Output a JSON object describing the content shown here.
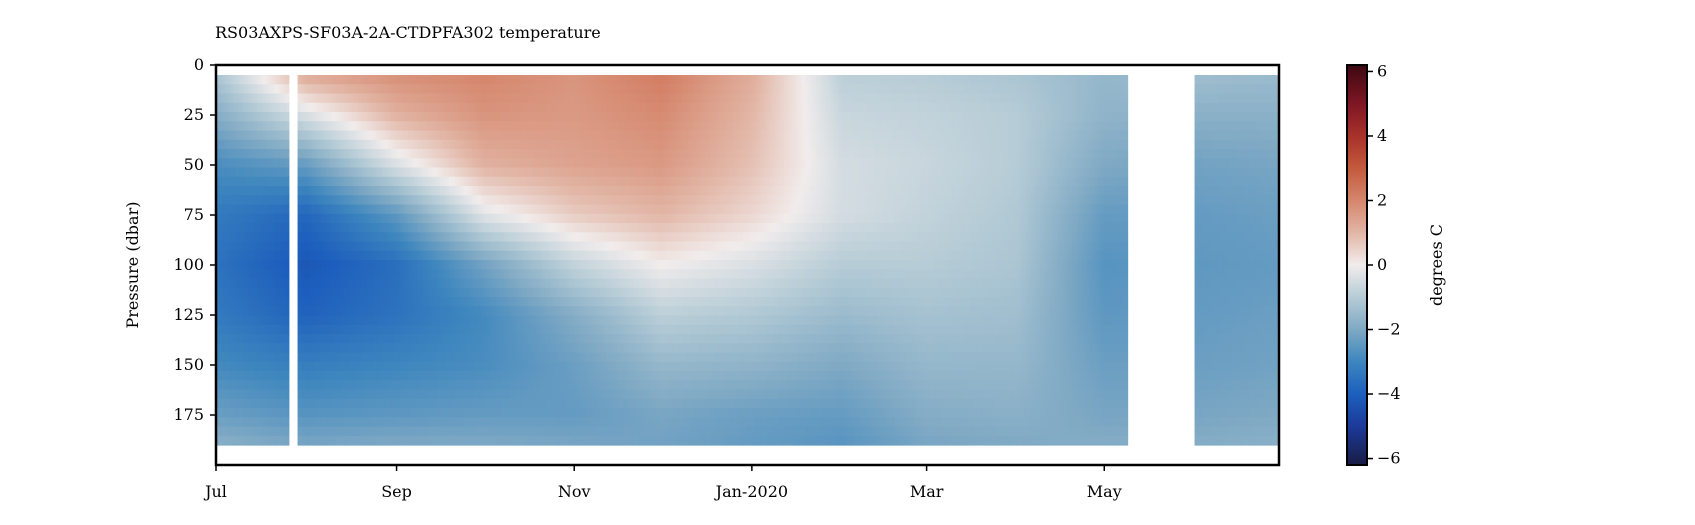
{
  "chart_data": {
    "type": "heatmap",
    "title": "RS03AXPS-SF03A-2A-CTDPFA302 temperature",
    "xlabel": "",
    "ylabel": "Pressure (dbar)",
    "y_inverted": true,
    "ylim": [
      200,
      0
    ],
    "y_ticks": [
      0,
      25,
      50,
      75,
      100,
      125,
      150,
      175
    ],
    "y_tick_labels": [
      "0",
      "25",
      "50",
      "75",
      "100",
      "125",
      "150",
      "175"
    ],
    "x_range": [
      "2019-07-01",
      "2020-06-30"
    ],
    "x_ticks": [
      "2019-07-01",
      "2019-09-01",
      "2019-11-01",
      "2020-01-01",
      "2020-03-01",
      "2020-05-01"
    ],
    "x_tick_labels": [
      "Jul",
      "Sep",
      "Nov",
      "Jan-2020",
      "Mar",
      "May"
    ],
    "data_gaps": [
      [
        "2019-07-26",
        "2019-07-29"
      ],
      [
        "2020-05-09",
        "2020-06-01"
      ]
    ],
    "profile_depth_range": [
      5,
      190
    ],
    "colorbar": {
      "label": "degrees C",
      "range": [
        -6.2,
        6.2
      ],
      "ticks": [
        6,
        4,
        2,
        0,
        -2,
        -4,
        -6
      ],
      "tick_labels": [
        "6",
        "4",
        "2",
        "0",
        "−2",
        "−4",
        "−6"
      ],
      "colormap": "balance",
      "stops": [
        {
          "value": -6.2,
          "color": "#181c43"
        },
        {
          "value": -5.0,
          "color": "#1c3a9a"
        },
        {
          "value": -4.0,
          "color": "#1d5fbd"
        },
        {
          "value": -3.0,
          "color": "#3d86be"
        },
        {
          "value": -2.0,
          "color": "#7fa9c4"
        },
        {
          "value": -1.0,
          "color": "#b6ccd6"
        },
        {
          "value": 0.0,
          "color": "#f1ecec"
        },
        {
          "value": 1.0,
          "color": "#e2b6a6"
        },
        {
          "value": 2.0,
          "color": "#d5866c"
        },
        {
          "value": 3.0,
          "color": "#c35a3d"
        },
        {
          "value": 4.0,
          "color": "#a8312a"
        },
        {
          "value": 5.0,
          "color": "#7e1624"
        },
        {
          "value": 6.2,
          "color": "#3c0912"
        }
      ]
    },
    "temperature_field": {
      "description_units": "degrees C at (date, pressure dbar)",
      "grid_dates": [
        "2019-07-01",
        "2019-08-01",
        "2019-09-01",
        "2019-10-01",
        "2019-11-01",
        "2019-12-01",
        "2020-01-01",
        "2020-02-01",
        "2020-03-01",
        "2020-04-01",
        "2020-05-01",
        "2020-06-01",
        "2020-06-30"
      ],
      "grid_pressures": [
        5,
        25,
        50,
        75,
        100,
        125,
        150,
        175,
        190
      ],
      "values": [
        [
          -1.2,
          -1.9,
          -2.8,
          -3.3,
          -3.5,
          -3.3,
          -2.9,
          -2.3,
          -1.8
        ],
        [
          1.3,
          -0.4,
          -2.4,
          -3.8,
          -4.2,
          -3.9,
          -3.2,
          -2.6,
          -2.1
        ],
        [
          1.8,
          1.1,
          -0.4,
          -2.5,
          -3.6,
          -3.5,
          -3.0,
          -2.5,
          -2.0
        ],
        [
          2.0,
          1.7,
          1.1,
          -0.3,
          -2.2,
          -2.9,
          -2.8,
          -2.4,
          -2.0
        ],
        [
          1.7,
          1.6,
          1.4,
          0.6,
          -0.8,
          -1.9,
          -2.3,
          -2.4,
          -2.1
        ],
        [
          2.2,
          1.9,
          1.6,
          1.0,
          0.0,
          -0.9,
          -1.6,
          -2.1,
          -2.2
        ],
        [
          1.2,
          1.0,
          0.8,
          0.4,
          -0.4,
          -1.1,
          -1.7,
          -2.3,
          -2.4
        ],
        [
          -0.9,
          -0.7,
          -0.5,
          -0.5,
          -1.0,
          -1.5,
          -2.0,
          -2.4,
          -2.6
        ],
        [
          -1.0,
          -0.8,
          -0.7,
          -0.8,
          -1.0,
          -1.3,
          -1.6,
          -1.9,
          -2.1
        ],
        [
          -1.2,
          -1.0,
          -1.0,
          -1.1,
          -1.2,
          -1.4,
          -1.6,
          -1.8,
          -2.0
        ],
        [
          -1.6,
          -1.7,
          -2.0,
          -2.4,
          -2.6,
          -2.5,
          -2.3,
          -2.1,
          -1.9
        ],
        [
          -1.4,
          -1.8,
          -2.2,
          -2.4,
          -2.5,
          -2.4,
          -2.3,
          -2.1,
          -1.9
        ],
        [
          -1.5,
          -1.8,
          -2.1,
          -2.3,
          -2.4,
          -2.3,
          -2.2,
          -2.0,
          -1.8
        ]
      ]
    }
  }
}
